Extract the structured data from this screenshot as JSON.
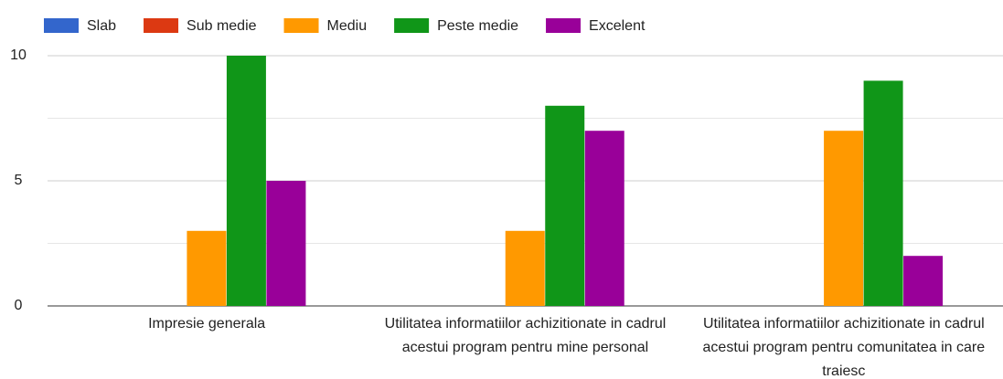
{
  "chart_data": {
    "type": "bar",
    "categories": [
      "Impresie generala",
      "Utilitatea informatiilor achizitionate in cadrul acestui program pentru mine personal",
      "Utilitatea informatiilor achizitionate in cadrul acestui program pentru comunitatea in care traiesc"
    ],
    "series": [
      {
        "name": "Slab",
        "color": "#3366cc",
        "values": [
          0,
          0,
          0
        ]
      },
      {
        "name": "Sub medie",
        "color": "#dc3912",
        "values": [
          0,
          0,
          0
        ]
      },
      {
        "name": "Mediu",
        "color": "#ff9900",
        "values": [
          3,
          3,
          7
        ]
      },
      {
        "name": "Peste medie",
        "color": "#109618",
        "values": [
          10,
          8,
          9
        ]
      },
      {
        "name": "Excelent",
        "color": "#990099",
        "values": [
          5,
          7,
          2
        ]
      }
    ],
    "ylim": [
      0,
      10
    ],
    "yticks": [
      0,
      5,
      10
    ],
    "minor_gridlines": [
      2.5,
      7.5
    ],
    "grid": true,
    "legend": "top"
  }
}
